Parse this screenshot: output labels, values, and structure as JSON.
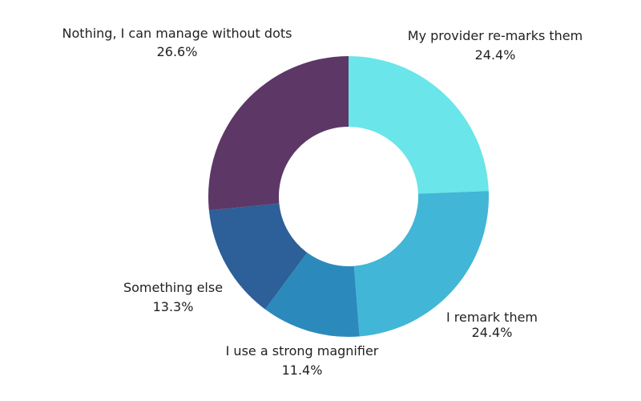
{
  "chart_data": {
    "type": "pie",
    "donut": true,
    "legend": "none",
    "slices": [
      {
        "label": "My provider re-marks them",
        "value": 24.4,
        "value_label": "24.4%",
        "color": "#6ae5e9"
      },
      {
        "label": "I remark them",
        "value": 24.4,
        "value_label": "24.4%",
        "color": "#41b6d6"
      },
      {
        "label": "I use a strong magnifier",
        "value": 11.4,
        "value_label": "11.4%",
        "color": "#2b8abb"
      },
      {
        "label": "Something else",
        "value": 13.3,
        "value_label": "13.3%",
        "color": "#2d5f98"
      },
      {
        "label": "Nothing, I can manage without dots",
        "value": 26.6,
        "value_label": "26.6%",
        "color": "#5d3766"
      }
    ]
  }
}
